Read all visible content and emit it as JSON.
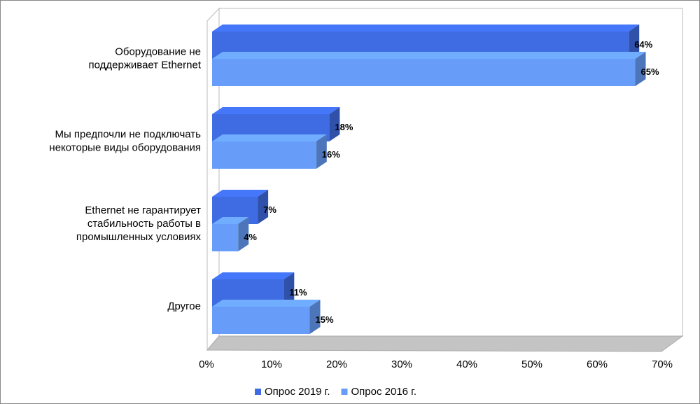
{
  "chart_data": {
    "type": "bar3d_horizontal",
    "categories": [
      "Оборудование не\nподдерживает Ethernet",
      "Мы предпочли не подключать\nнекоторые виды оборудования",
      "Ethernet не гарантирует\nстабильность работы в\nпромышленных условиях",
      "Другое"
    ],
    "series": [
      {
        "name": "Опрос 2019 г.",
        "color": "#3f6ce3",
        "values": [
          64,
          18,
          7,
          11
        ],
        "value_labels": [
          "64%",
          "18%",
          "7%",
          "11%"
        ]
      },
      {
        "name": "Опрос 2016 г.",
        "color": "#679df8",
        "values": [
          65,
          16,
          4,
          15
        ],
        "value_labels": [
          "65%",
          "16%",
          "4%",
          "15%"
        ]
      }
    ],
    "xlim": [
      0,
      70
    ],
    "xticks": [
      {
        "value": 0,
        "label": "0%"
      },
      {
        "value": 10,
        "label": "10%"
      },
      {
        "value": 20,
        "label": "20%"
      },
      {
        "value": 30,
        "label": "30%"
      },
      {
        "value": 40,
        "label": "40%"
      },
      {
        "value": 50,
        "label": "50%"
      },
      {
        "value": 60,
        "label": "60%"
      },
      {
        "value": 70,
        "label": "70%"
      }
    ],
    "legend": "bottom"
  }
}
